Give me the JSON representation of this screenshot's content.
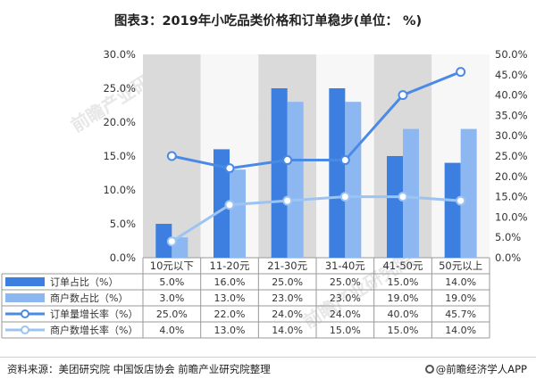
{
  "title": "图表3：2019年小吃品类价格和订单稳步(单位：  %)",
  "source": "资料来源：美团研究院 中国饭店协会  前瞻产业研究院整理",
  "brand": "@前瞻经济学人APP",
  "watermark": "前瞻产业研究院",
  "colors": {
    "order_share": "#3c7fe0",
    "merchant_share": "#8db7f1",
    "order_growth": "#4a8ae6",
    "merchant_growth": "#9cc4f3",
    "grid_band": "#dadada"
  },
  "chart_data": {
    "type": "bar",
    "categories": [
      "10元以下",
      "11-20元",
      "21-30元",
      "31-40元",
      "41-50元",
      "50元以上"
    ],
    "series": [
      {
        "name": "订单占比（%）",
        "kind": "bar",
        "axis": "left",
        "values": [
          5.0,
          16.0,
          25.0,
          25.0,
          15.0,
          14.0
        ],
        "labels": [
          "5.0%",
          "16.0%",
          "25.0%",
          "25.0%",
          "15.0%",
          "14.0%"
        ]
      },
      {
        "name": "商户数占比（%）",
        "kind": "bar",
        "axis": "left",
        "values": [
          3.0,
          13.0,
          23.0,
          23.0,
          19.0,
          19.0
        ],
        "labels": [
          "3.0%",
          "13.0%",
          "23.0%",
          "23.0%",
          "19.0%",
          "19.0%"
        ]
      },
      {
        "name": "订单量增长率（%）",
        "kind": "line",
        "axis": "right",
        "values": [
          25.0,
          22.0,
          24.0,
          24.0,
          40.0,
          45.7
        ],
        "labels": [
          "25.0%",
          "22.0%",
          "24.0%",
          "24.0%",
          "40.0%",
          "45.7%"
        ]
      },
      {
        "name": "商户数增长率（%）",
        "kind": "line",
        "axis": "right",
        "values": [
          4.0,
          13.0,
          14.0,
          15.0,
          15.0,
          14.0
        ],
        "labels": [
          "4.0%",
          "13.0%",
          "14.0%",
          "15.0%",
          "15.0%",
          "14.0%"
        ]
      }
    ],
    "y_left": {
      "range": [
        0,
        30
      ],
      "ticks": [
        0,
        5,
        10,
        15,
        20,
        25,
        30
      ],
      "tick_labels": [
        "0.0%",
        "5.0%",
        "10.0%",
        "15.0%",
        "20.0%",
        "25.0%",
        "30.0%"
      ]
    },
    "y_right": {
      "range": [
        0,
        50
      ],
      "ticks": [
        0,
        5,
        10,
        15,
        20,
        25,
        30,
        35,
        40,
        45,
        50
      ],
      "tick_labels": [
        "0.0%",
        "5.0%",
        "10.0%",
        "15.0%",
        "20.0%",
        "25.0%",
        "30.0%",
        "35.0%",
        "40.0%",
        "45.0%",
        "50.0%"
      ]
    },
    "data_table": true,
    "grid": "alternating vertical bands"
  }
}
